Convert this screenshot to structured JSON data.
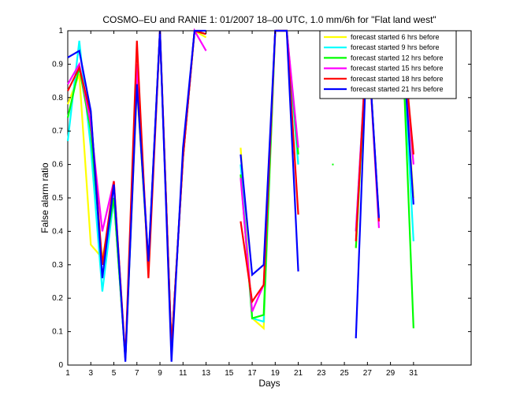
{
  "chart_data": {
    "type": "line",
    "title": "COSMO–EU and RANIE 1: 01/2007 18–00 UTC, 1.0 mm/6h for \"Flat land west\"",
    "xlabel": "Days",
    "ylabel": "False alarm ratio",
    "xlim": [
      1,
      36
    ],
    "ylim": [
      0,
      1
    ],
    "xticks": [
      1,
      3,
      5,
      7,
      9,
      11,
      13,
      15,
      17,
      19,
      21,
      23,
      25,
      27,
      29,
      31
    ],
    "yticks": [
      0,
      0.1,
      0.2,
      0.3,
      0.4,
      0.5,
      0.6,
      0.7,
      0.8,
      0.9,
      1
    ],
    "ytick_labels": [
      "0",
      "0.1",
      "0.2",
      "0.3",
      "0.4",
      "0.5",
      "0.6",
      "0.7",
      "0.8",
      "0.9",
      "1"
    ],
    "grid": false,
    "legend_position": "top-right",
    "series": [
      {
        "name": "forecast started 6 hrs before",
        "color": "#ffff00",
        "values": [
          0.78,
          0.87,
          0.36,
          0.32,
          0.5,
          0.02,
          0.83,
          0.3,
          1.0,
          0.05,
          0.62,
          1.0,
          0.98,
          null,
          null,
          0.65,
          0.14,
          0.11,
          1.0,
          1.0,
          0.6,
          null,
          null,
          null,
          null,
          0.35,
          1.0,
          0.43,
          null,
          1.0,
          0.5
        ]
      },
      {
        "name": "forecast started 9 hrs before",
        "color": "#00ffff",
        "values": [
          0.67,
          0.97,
          0.65,
          0.22,
          0.5,
          0.02,
          0.85,
          0.3,
          1.0,
          0.05,
          0.62,
          1.0,
          0.99,
          null,
          null,
          0.6,
          0.14,
          0.13,
          1.0,
          1.0,
          0.6,
          null,
          null,
          null,
          null,
          0.4,
          1.0,
          0.43,
          null,
          1.0,
          0.37
        ]
      },
      {
        "name": "forecast started 12 hrs before",
        "color": "#00ff00",
        "values": [
          0.74,
          0.89,
          0.7,
          0.3,
          0.5,
          0.02,
          0.85,
          0.3,
          1.0,
          0.05,
          0.62,
          1.0,
          0.99,
          null,
          null,
          0.57,
          0.14,
          0.15,
          1.0,
          1.0,
          0.63,
          null,
          null,
          0.6,
          null,
          0.35,
          1.0,
          0.43,
          null,
          1.0,
          0.11
        ]
      },
      {
        "name": "forecast started 15 hrs before",
        "color": "#ff00ff",
        "values": [
          0.84,
          0.9,
          0.72,
          0.4,
          0.55,
          0.02,
          0.9,
          0.3,
          1.0,
          0.05,
          0.62,
          1.0,
          0.94,
          null,
          null,
          0.56,
          0.16,
          0.24,
          1.0,
          1.0,
          0.65,
          null,
          null,
          null,
          null,
          0.4,
          1.0,
          0.41,
          null,
          1.0,
          0.6
        ]
      },
      {
        "name": "forecast started 18 hrs before",
        "color": "#ff0000",
        "values": [
          0.82,
          0.89,
          0.75,
          0.3,
          0.55,
          0.02,
          0.97,
          0.26,
          1.0,
          0.05,
          0.62,
          1.0,
          0.99,
          null,
          null,
          0.43,
          0.19,
          0.24,
          1.0,
          1.0,
          0.45,
          null,
          null,
          null,
          null,
          0.37,
          1.0,
          0.43,
          null,
          1.0,
          0.63
        ]
      },
      {
        "name": "forecast started 21 hrs before",
        "color": "#0000ff",
        "values": [
          0.92,
          0.94,
          0.76,
          0.26,
          0.54,
          0.01,
          0.84,
          0.31,
          1.0,
          0.01,
          0.65,
          1.0,
          1.0,
          null,
          null,
          0.63,
          0.27,
          0.3,
          1.0,
          1.0,
          0.28,
          null,
          null,
          null,
          null,
          0.08,
          1.0,
          0.44,
          null,
          1.0,
          0.48
        ]
      }
    ]
  }
}
